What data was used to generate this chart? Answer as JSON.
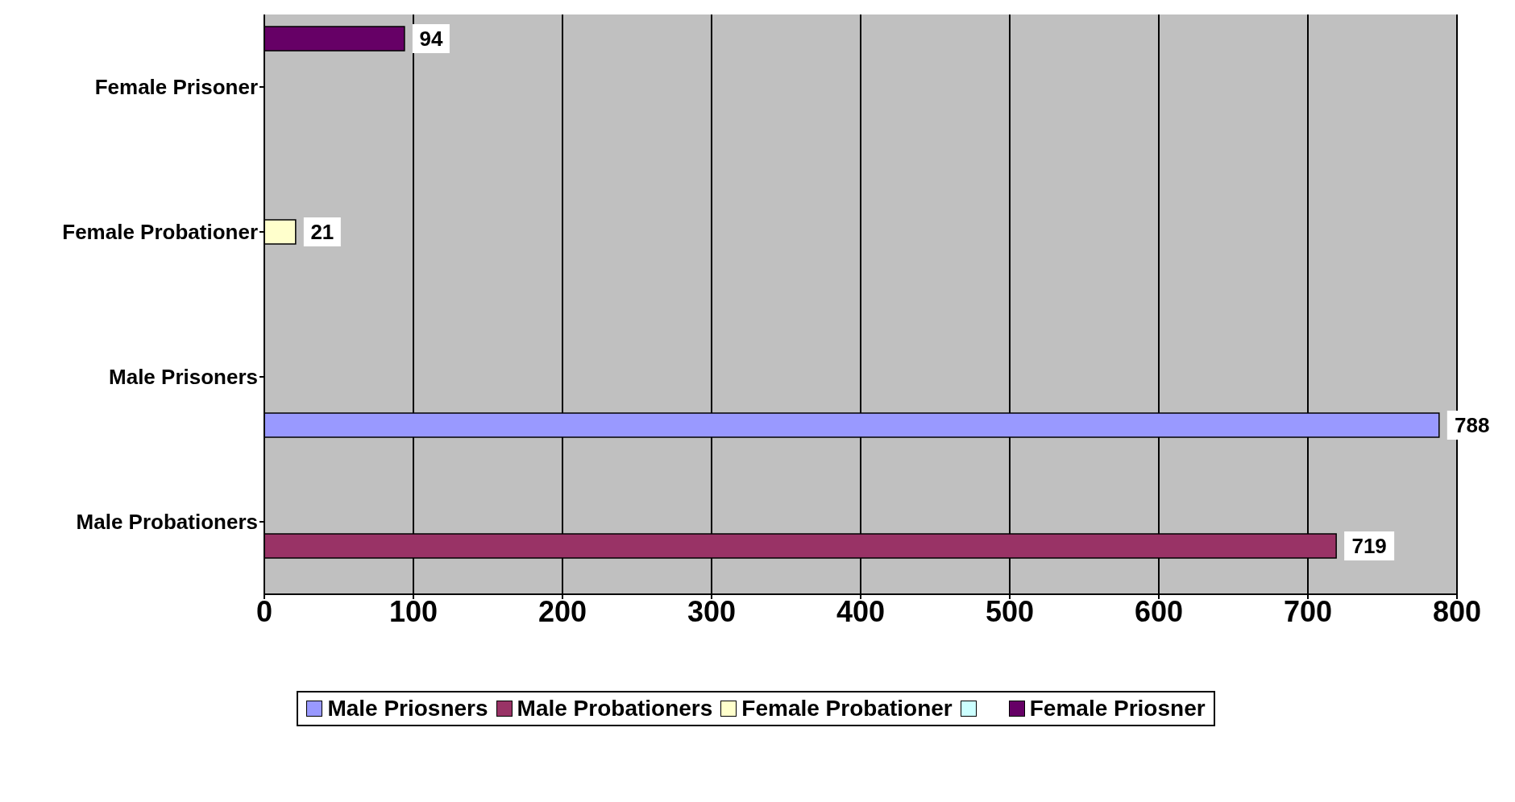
{
  "chart_data": {
    "type": "bar",
    "orientation": "horizontal",
    "categories": [
      "Female Prisoner",
      "Female Probationer",
      "Male Prisoners",
      "Male Probationers"
    ],
    "series": [
      {
        "name": "Male Priosners",
        "color": "#9999ff",
        "values": [
          null,
          null,
          788,
          null
        ]
      },
      {
        "name": "Male Probationers",
        "color": "#993366",
        "values": [
          null,
          null,
          null,
          719
        ]
      },
      {
        "name": "Female Probationer",
        "color": "#ffffcc",
        "values": [
          null,
          21,
          null,
          null
        ]
      },
      {
        "color": "#ccffff",
        "values": [
          null,
          null,
          null,
          null
        ]
      },
      {
        "name": "Female Priosner",
        "color": "#660066",
        "values": [
          94,
          null,
          null,
          null
        ]
      }
    ],
    "xlim": [
      0,
      800
    ],
    "xticks": [
      0,
      100,
      200,
      300,
      400,
      500,
      600,
      700,
      800
    ],
    "grid": "x",
    "legend": "bottom",
    "data_labels": true
  }
}
